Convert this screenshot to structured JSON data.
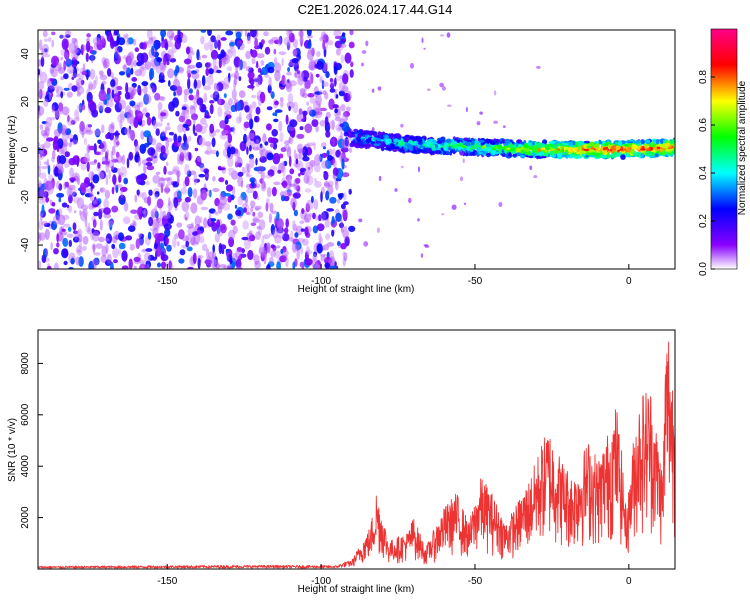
{
  "title": "C2E1.2026.024.17.44.G14",
  "chart_data": [
    {
      "type": "heatmap",
      "xlabel": "Height of straight line (km)",
      "ylabel": "Frequency (Hz)",
      "xlim": [
        -192,
        15
      ],
      "ylim": [
        -50,
        50
      ],
      "xticks": [
        -150,
        -100,
        -50,
        0
      ],
      "yticks": [
        -40,
        -20,
        0,
        20,
        40
      ],
      "colorbar": {
        "label": "Normalized spectral amplitude",
        "range": [
          0,
          1
        ],
        "ticks": [
          0,
          0.2,
          0.4,
          0.6,
          0.8
        ],
        "tick_labels": [
          "0.0",
          "0.2",
          "0.4",
          "0.6",
          "0.8"
        ],
        "colors": [
          "#ffffff",
          "#8800ff",
          "#0000ff",
          "#00ffff",
          "#00ff00",
          "#ffff00",
          "#ff0000",
          "#ff0088"
        ]
      },
      "noise_region": {
        "x": [
          -192,
          -90
        ],
        "amplitude": [
          0.1,
          0.35
        ]
      },
      "signal_band": {
        "x": [
          -90,
          15
        ],
        "center_freq_hz": [
          [
            -90,
            5
          ],
          [
            -70,
            2
          ],
          [
            -50,
            1
          ],
          [
            -30,
            0
          ],
          [
            -10,
            0
          ],
          [
            0,
            0
          ],
          [
            15,
            1
          ]
        ],
        "amplitude": [
          [
            -90,
            0.35
          ],
          [
            -60,
            0.5
          ],
          [
            -40,
            0.6
          ],
          [
            -20,
            0.8
          ],
          [
            0,
            0.85
          ],
          [
            15,
            0.8
          ]
        ]
      }
    },
    {
      "type": "line",
      "xlabel": "Height of straight line (km)",
      "ylabel": "SNR (10 * v/v)",
      "xlim": [
        -192,
        15
      ],
      "ylim": [
        0,
        9300
      ],
      "xticks": [
        -150,
        -100,
        -50,
        0
      ],
      "yticks": [
        2000,
        4000,
        6000,
        8000
      ],
      "series": [
        {
          "name": "SNR",
          "color": "#ee3333",
          "envelope": [
            [
              -192,
              80
            ],
            [
              -150,
              100
            ],
            [
              -120,
              110
            ],
            [
              -95,
              100
            ],
            [
              -90,
              300
            ],
            [
              -84,
              1400
            ],
            [
              -82,
              2600
            ],
            [
              -78,
              900
            ],
            [
              -72,
              1200
            ],
            [
              -70,
              1700
            ],
            [
              -66,
              700
            ],
            [
              -60,
              2000
            ],
            [
              -56,
              2500
            ],
            [
              -52,
              1500
            ],
            [
              -48,
              3000
            ],
            [
              -45,
              2600
            ],
            [
              -40,
              1500
            ],
            [
              -36,
              2200
            ],
            [
              -32,
              3000
            ],
            [
              -28,
              4200
            ],
            [
              -26,
              4600
            ],
            [
              -22,
              3600
            ],
            [
              -18,
              3000
            ],
            [
              -16,
              3600
            ],
            [
              -13,
              4200
            ],
            [
              -10,
              3600
            ],
            [
              -7,
              4400
            ],
            [
              -4,
              5400
            ],
            [
              -2,
              3500
            ],
            [
              -1,
              2000
            ],
            [
              0,
              2600
            ],
            [
              2,
              4800
            ],
            [
              4,
              5800
            ],
            [
              7,
              6000
            ],
            [
              9,
              4600
            ],
            [
              11,
              3200
            ],
            [
              12,
              7500
            ],
            [
              13,
              8000
            ],
            [
              14,
              6500
            ],
            [
              15,
              6000
            ]
          ]
        }
      ]
    }
  ]
}
